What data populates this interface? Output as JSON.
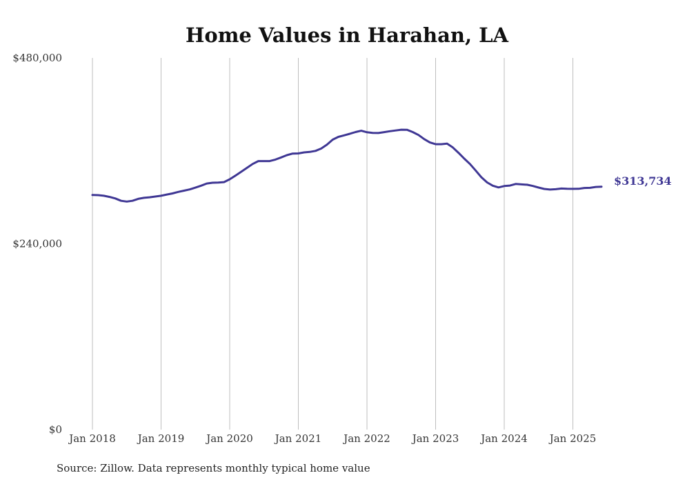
{
  "chart_data": {
    "type": "line",
    "title": "Home Values in Harahan, LA",
    "xlabel": "",
    "ylabel": "",
    "ylim": [
      0,
      480000
    ],
    "y_ticks": [
      {
        "value": 0,
        "label": "$0"
      },
      {
        "value": 240000,
        "label": "$240,000"
      },
      {
        "value": 480000,
        "label": "$480,000"
      }
    ],
    "x_ticks": [
      "Jan 2018",
      "Jan 2019",
      "Jan 2020",
      "Jan 2021",
      "Jan 2022",
      "Jan 2023",
      "Jan 2024",
      "Jan 2025"
    ],
    "grid": "vertical",
    "legend": "none",
    "color": "#3f3794",
    "series": [
      {
        "x": [
          "2018-01",
          "2018-02",
          "2018-03",
          "2018-04",
          "2018-05",
          "2018-06",
          "2018-07",
          "2018-08",
          "2018-09",
          "2018-10",
          "2018-11",
          "2018-12",
          "2019-01",
          "2019-02",
          "2019-03",
          "2019-04",
          "2019-05",
          "2019-06",
          "2019-07",
          "2019-08",
          "2019-09",
          "2019-10",
          "2019-11",
          "2019-12",
          "2020-01",
          "2020-02",
          "2020-03",
          "2020-04",
          "2020-05",
          "2020-06",
          "2020-07",
          "2020-08",
          "2020-09",
          "2020-10",
          "2020-11",
          "2020-12",
          "2021-01",
          "2021-02",
          "2021-03",
          "2021-04",
          "2021-05",
          "2021-06",
          "2021-07",
          "2021-08",
          "2021-09",
          "2021-10",
          "2021-11",
          "2021-12",
          "2022-01",
          "2022-02",
          "2022-03",
          "2022-04",
          "2022-05",
          "2022-06",
          "2022-07",
          "2022-08",
          "2022-09",
          "2022-10",
          "2022-11",
          "2022-12",
          "2023-01",
          "2023-02",
          "2023-03",
          "2023-04",
          "2023-05",
          "2023-06",
          "2023-07",
          "2023-08",
          "2023-09",
          "2023-10",
          "2023-11",
          "2023-12",
          "2024-01",
          "2024-02",
          "2024-03",
          "2024-04",
          "2024-05",
          "2024-06",
          "2024-07",
          "2024-08",
          "2024-09",
          "2024-10",
          "2024-11",
          "2024-12",
          "2025-01",
          "2025-02",
          "2025-03",
          "2025-04",
          "2025-05",
          "2025-06"
        ],
        "values": [
          303000,
          302800,
          302000,
          300500,
          298500,
          295500,
          294500,
          295500,
          298000,
          299300,
          300000,
          301000,
          302000,
          303600,
          305000,
          307000,
          308600,
          310200,
          312500,
          315000,
          317800,
          318800,
          319000,
          319600,
          323300,
          328000,
          333000,
          338000,
          343000,
          346800,
          346800,
          346800,
          348700,
          351500,
          354400,
          356500,
          356700,
          358000,
          358600,
          360000,
          363000,
          368000,
          374500,
          378000,
          380000,
          382000,
          384300,
          386000,
          384000,
          383200,
          383000,
          384200,
          385300,
          386300,
          387300,
          387200,
          384300,
          380500,
          375200,
          370800,
          368600,
          368600,
          369300,
          364400,
          357500,
          350000,
          343000,
          334700,
          325900,
          319300,
          315000,
          312800,
          314500,
          315200,
          317200,
          316700,
          316200,
          314600,
          312600,
          310800,
          310000,
          310400,
          311300,
          311000,
          310900,
          311000,
          312000,
          312200,
          313400,
          313734
        ]
      }
    ],
    "end_label": "$313,734",
    "source": "Source: Zillow. Data represents monthly typical home value"
  }
}
